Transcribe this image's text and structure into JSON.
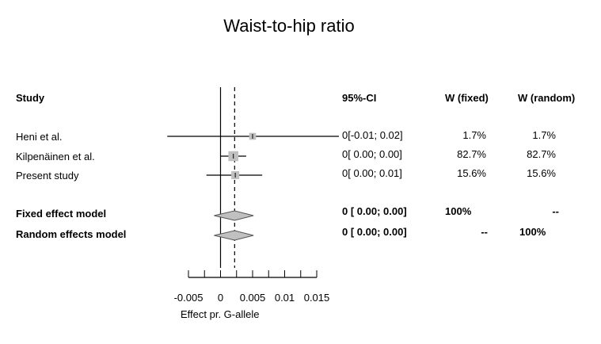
{
  "chart_data": {
    "type": "forest",
    "title": "Waist-to-hip ratio",
    "xlabel": "Effect pr. G-allele",
    "xticks": [
      -0.005,
      0,
      0.005,
      0.01,
      0.015
    ],
    "xtick_labels": [
      "-0.005",
      "0",
      "0.005",
      "0.01",
      "0.015"
    ],
    "xlim": [
      -0.005,
      0.015
    ],
    "fixed_effect_line": 0.0022,
    "columns": {
      "study": "Study",
      "ci": "95%-CI",
      "w_fixed": "W (fixed)",
      "w_random": "W (random)"
    },
    "studies": [
      {
        "name": "Heni et al.",
        "estimate": 0.005,
        "lower": -0.0083,
        "upper": 0.0185,
        "weight": 1.7,
        "ci_text": "0[-0.01; 0.02]",
        "w_fixed": "1.7%",
        "w_random": "1.7%"
      },
      {
        "name": "Kilpenäinen et al.",
        "estimate": 0.002,
        "lower": 0.0,
        "upper": 0.004,
        "weight": 82.7,
        "ci_text": "0[ 0.00; 0.00]",
        "w_fixed": "82.7%",
        "w_random": "82.7%"
      },
      {
        "name": "Present study",
        "estimate": 0.0023,
        "lower": -0.0022,
        "upper": 0.0065,
        "weight": 15.6,
        "ci_text": "0[ 0.00; 0.01]",
        "w_fixed": "15.6%",
        "w_random": "15.6%"
      }
    ],
    "models": [
      {
        "name": "Fixed effect model",
        "estimate": 0.0022,
        "lower": 0.0006,
        "upper": 0.0039,
        "ci_text": "0 [ 0.00; 0.00]",
        "w_fixed": "100%",
        "w_random": "--"
      },
      {
        "name": "Random effects model",
        "estimate": 0.0022,
        "lower": 0.0006,
        "upper": 0.0039,
        "ci_text": "0 [ 0.00; 0.00]",
        "w_fixed": "--",
        "w_random": "100%"
      }
    ],
    "colors": {
      "box": "#c0c0c0",
      "diamond": "#c0c0c0",
      "line": "#000000"
    }
  }
}
